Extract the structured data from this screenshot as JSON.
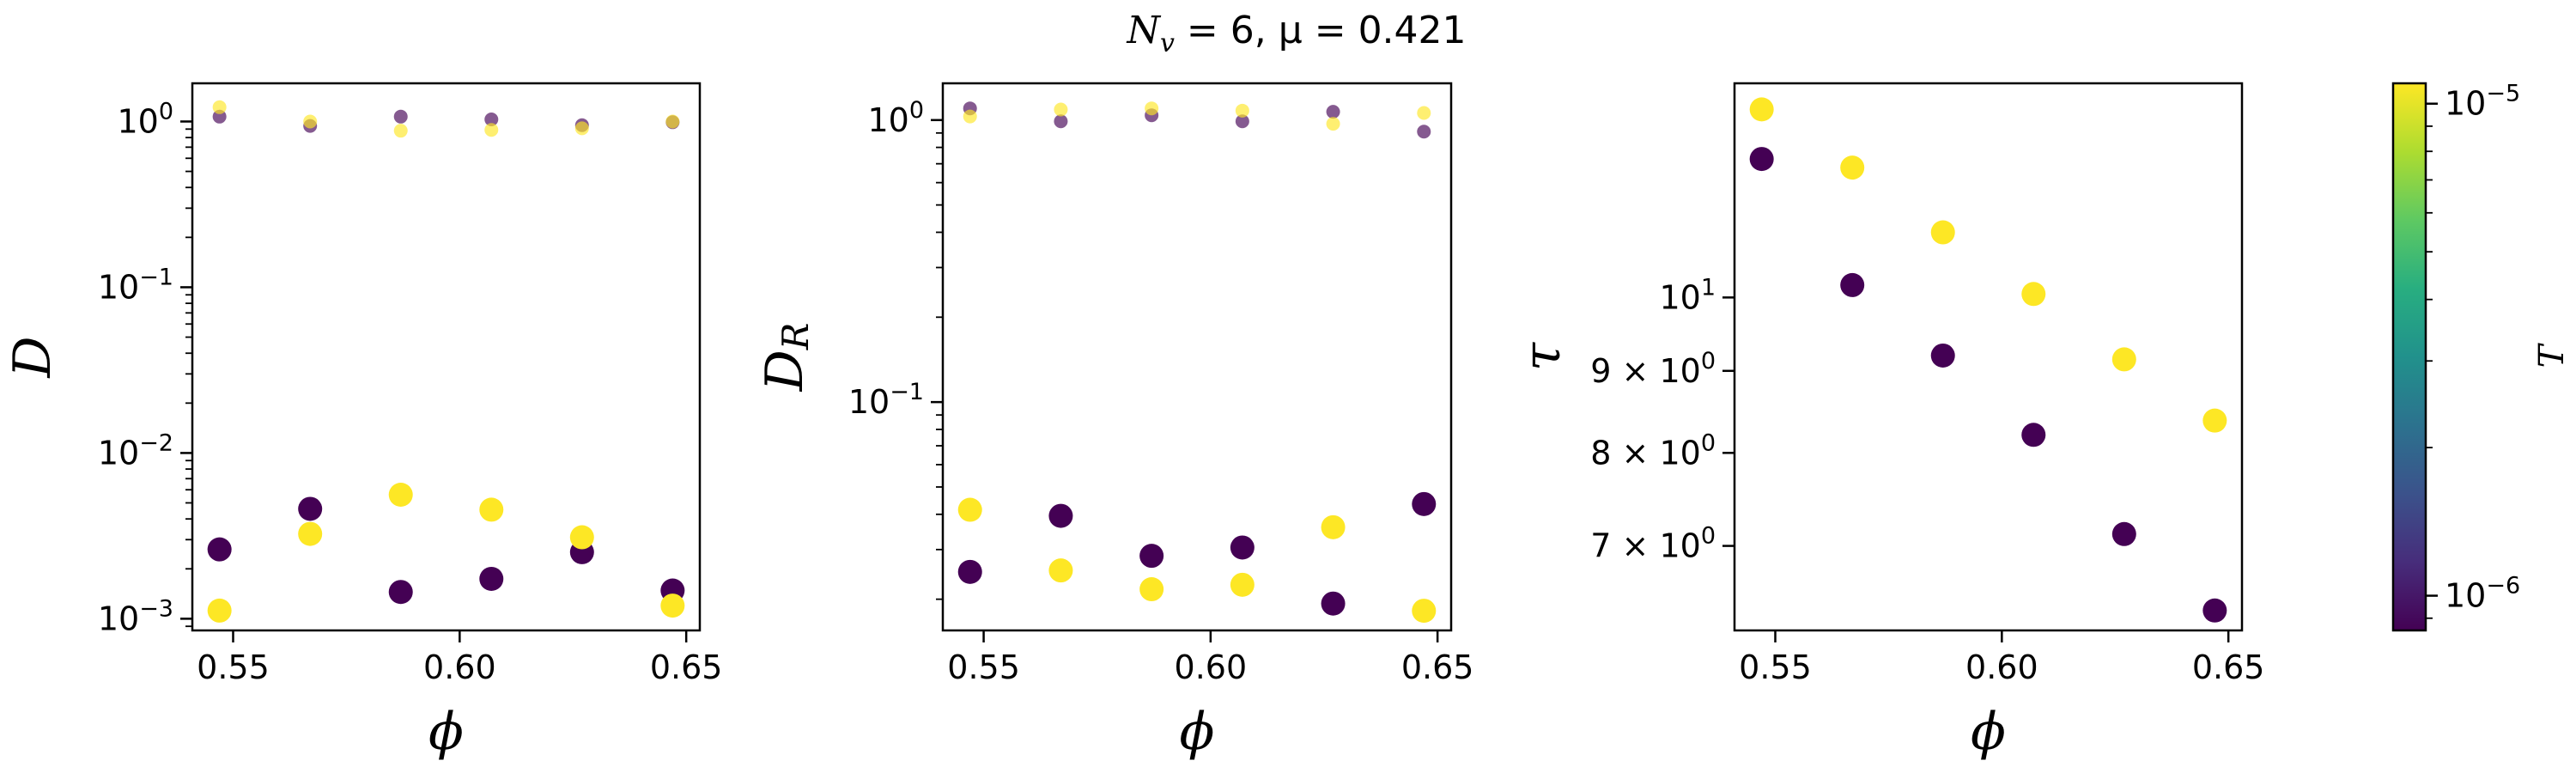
{
  "title": "N_v = 6, μ = 0.421",
  "colormap": {
    "name": "viridis",
    "low_color": "#440154",
    "high_color": "#fde725"
  },
  "chart_data": [
    {
      "type": "scatter",
      "xlabel": "ϕ",
      "ylabel": "D",
      "yscale": "log",
      "xlim": [
        0.541,
        0.653
      ],
      "ylim": [
        0.00085,
        1.7
      ],
      "xticks": [
        0.55,
        0.6,
        0.65
      ],
      "xtick_labels": [
        "0.55",
        "0.60",
        "0.65"
      ],
      "yticks": [
        0.001,
        0.01,
        0.1,
        1
      ],
      "ytick_labels": [
        [
          "10",
          "−3"
        ],
        [
          "10",
          "−2"
        ],
        [
          "10",
          "−1"
        ],
        [
          "10",
          "0"
        ]
      ],
      "series": [
        {
          "T": "1e-6",
          "color": "#440154",
          "marker": "large",
          "x": [
            0.547,
            0.567,
            0.587,
            0.607,
            0.627,
            0.647
          ],
          "y": [
            0.00262,
            0.0046,
            0.00145,
            0.00174,
            0.00252,
            0.00148
          ]
        },
        {
          "T": "1e-5",
          "color": "#fde725",
          "marker": "large",
          "x": [
            0.547,
            0.567,
            0.587,
            0.607,
            0.627,
            0.647
          ],
          "y": [
            0.00112,
            0.00325,
            0.0056,
            0.00455,
            0.0031,
            0.0012
          ]
        },
        {
          "T": "1e-6",
          "color": "#440154",
          "marker": "small-translucent",
          "x": [
            0.547,
            0.567,
            0.587,
            0.607,
            0.627,
            0.647
          ],
          "y": [
            1.07,
            0.94,
            1.07,
            1.03,
            0.95,
            0.99
          ]
        },
        {
          "T": "1e-5",
          "color": "#fde725",
          "marker": "small-translucent",
          "x": [
            0.547,
            0.567,
            0.587,
            0.607,
            0.627,
            0.647
          ],
          "y": [
            1.22,
            1.0,
            0.88,
            0.89,
            0.91,
            1.0
          ]
        }
      ]
    },
    {
      "type": "scatter",
      "xlabel": "ϕ",
      "ylabel": "D_R",
      "yscale": "log",
      "xlim": [
        0.541,
        0.653
      ],
      "ylim": [
        0.0155,
        1.35
      ],
      "xticks": [
        0.55,
        0.6,
        0.65
      ],
      "xtick_labels": [
        "0.55",
        "0.60",
        "0.65"
      ],
      "yticks": [
        0.1,
        1
      ],
      "ytick_labels": [
        [
          "10",
          "−1"
        ],
        [
          "10",
          "0"
        ]
      ],
      "series": [
        {
          "T": "1e-6",
          "color": "#440154",
          "marker": "large",
          "x": [
            0.547,
            0.567,
            0.587,
            0.607,
            0.627,
            0.647
          ],
          "y": [
            0.025,
            0.0395,
            0.0285,
            0.0305,
            0.0193,
            0.0435
          ]
        },
        {
          "T": "1e-5",
          "color": "#fde725",
          "marker": "large",
          "x": [
            0.547,
            0.567,
            0.587,
            0.607,
            0.627,
            0.647
          ],
          "y": [
            0.0415,
            0.0253,
            0.0217,
            0.0225,
            0.036,
            0.0182
          ]
        },
        {
          "T": "1e-6",
          "color": "#440154",
          "marker": "small-translucent",
          "x": [
            0.547,
            0.567,
            0.587,
            0.607,
            0.627,
            0.647
          ],
          "y": [
            1.1,
            0.99,
            1.04,
            0.99,
            1.07,
            0.91
          ]
        },
        {
          "T": "1e-5",
          "color": "#fde725",
          "marker": "small-translucent",
          "x": [
            0.547,
            0.567,
            0.587,
            0.607,
            0.627,
            0.647
          ],
          "y": [
            1.03,
            1.09,
            1.1,
            1.08,
            0.97,
            1.06
          ]
        }
      ]
    },
    {
      "type": "scatter",
      "xlabel": "ϕ",
      "ylabel": "τ",
      "yscale": "log",
      "xlim": [
        0.541,
        0.653
      ],
      "ylim": [
        6.2,
        13.6
      ],
      "xticks": [
        0.55,
        0.6,
        0.65
      ],
      "xtick_labels": [
        "0.55",
        "0.60",
        "0.65"
      ],
      "yticks": [
        7,
        8,
        9,
        10
      ],
      "ytick_labels": [
        [
          "7 × 10",
          "0"
        ],
        [
          "8 × 10",
          "0"
        ],
        [
          "9 × 10",
          "0"
        ],
        [
          "10",
          "1"
        ]
      ],
      "series": [
        {
          "T": "1e-6",
          "color": "#440154",
          "marker": "large",
          "x": [
            0.547,
            0.567,
            0.587,
            0.607,
            0.627,
            0.647
          ],
          "y": [
            12.2,
            10.18,
            9.2,
            8.21,
            7.12,
            6.38
          ]
        },
        {
          "T": "1e-5",
          "color": "#fde725",
          "marker": "large",
          "x": [
            0.547,
            0.567,
            0.587,
            0.607,
            0.627,
            0.647
          ],
          "y": [
            13.1,
            12.05,
            10.98,
            10.05,
            9.15,
            8.38
          ]
        }
      ]
    }
  ],
  "colorbar": {
    "label": "T",
    "scale": "log",
    "range": [
      8.5e-07,
      1.1e-05
    ],
    "ticks": [
      1e-06,
      1e-05
    ],
    "tick_labels": [
      [
        "10",
        "−6"
      ],
      [
        "10",
        "−5"
      ]
    ]
  }
}
